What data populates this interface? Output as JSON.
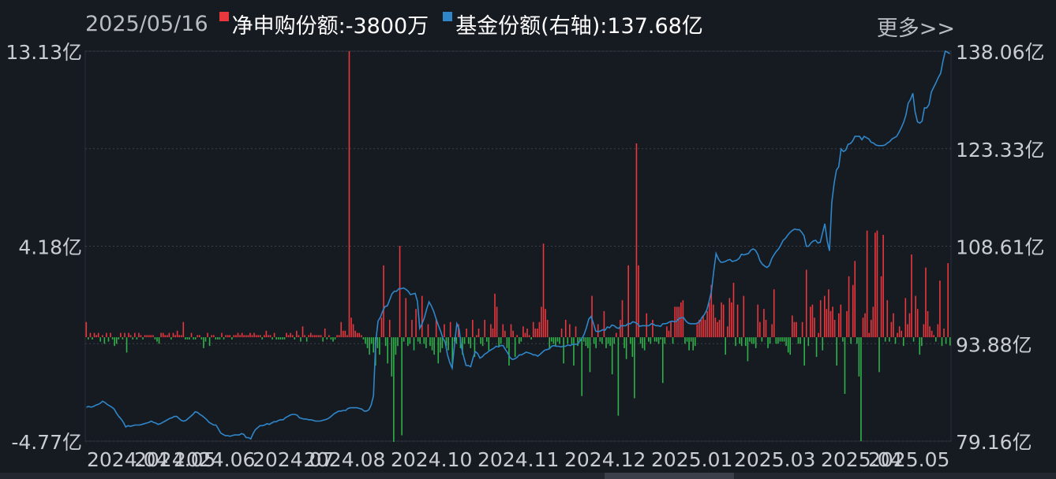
{
  "header": {
    "date": "2025/05/16",
    "net_label": "净申购份额:-3800万",
    "share_label": "基金份额(右轴):137.68亿",
    "more_label": "更多>>"
  },
  "colors": {
    "background": "#161a21",
    "positive_bar": "#e8373d",
    "negative_bar": "#2fb24a",
    "share_line": "#2f86c8",
    "text": "#c9ccd2"
  },
  "chart_data": {
    "type": "bar+line",
    "series": [
      {
        "name": "净申购份额",
        "axis": "left",
        "unit": "亿",
        "type": "bar",
        "values": [
          0.7,
          -0.1,
          0.2,
          -0.1,
          0.2,
          0.1,
          0.2,
          -0.2,
          0.1,
          -0.3,
          0.2,
          -0.2,
          0.2,
          -0.1,
          -0.4,
          -0.3,
          -0.1,
          0.2,
          -0.1,
          0.2,
          -0.7,
          0.2,
          0.1,
          -0.1,
          0.2,
          -0.1,
          0.2,
          0.1,
          -0.1,
          0.1,
          0.1,
          0.1,
          0.1,
          0.1,
          -0.1,
          -0.2,
          -0.3,
          0.2,
          0.2,
          0.1,
          0.1,
          0.2,
          -0.1,
          0.2,
          0.1,
          0.3,
          0.1,
          0.1,
          0.7,
          -0.1,
          -0.1,
          -0.1,
          0.2,
          -0.1,
          -0.1,
          0.1,
          0.1,
          -0.1,
          -0.5,
          -0.2,
          0.2,
          -0.4,
          0.1,
          0.1,
          -0.1,
          -0.1,
          -0.1,
          0.2,
          -0.1,
          0.1,
          0.1,
          0.1,
          -0.1,
          0.1,
          0.1,
          0.2,
          0.1,
          0.2,
          0.1,
          0.1,
          0.1,
          0.2,
          0.1,
          0.2,
          0.1,
          0.1,
          0.1,
          -0.1,
          0.1,
          0.3,
          0.1,
          0.1,
          -0.1,
          0.2,
          -0.1,
          -0.1,
          -0.1,
          -0.1,
          -0.1,
          0.2,
          0.1,
          0.2,
          0.1,
          -0.1,
          0.3,
          0.1,
          -0.2,
          0.5,
          0.1,
          -0.2,
          0.1,
          0.2,
          0.1,
          0.1,
          0.1,
          0.1,
          0.1,
          -0.2,
          0.4,
          -0.1,
          0.1,
          -0.1,
          -0.2,
          -0.1,
          0.1,
          0.1,
          0.7,
          0.3,
          0.3,
          0.1,
          13.13,
          0.9,
          0.6,
          0.3,
          0.2,
          0.2,
          0.1,
          -0.1,
          -0.3,
          -0.5,
          -0.8,
          -0.3,
          -0.7,
          -1.3,
          -0.5,
          -0.8,
          0.9,
          3.3,
          -0.4,
          -1.2,
          0.8,
          -1.8,
          -4.8,
          -0.8,
          -0.4,
          4.2,
          -4.5,
          -0.2,
          1.8,
          -0.4,
          -0.3,
          0.8,
          -0.6,
          1.3,
          -0.2,
          -0.3,
          1.9,
          -0.3,
          -0.5,
          0.6,
          -0.4,
          -0.6,
          -0.8,
          0.8,
          -1.2,
          -0.7,
          -0.5,
          0.6,
          -0.4,
          -0.6,
          0.7,
          -1.4,
          -0.2,
          -0.3,
          0.6,
          -0.5,
          -0.8,
          -0.3,
          0.4,
          -0.3,
          -0.5,
          0.8,
          -0.9,
          0.1,
          0.4,
          -0.3,
          -0.4,
          0.8,
          -0.2,
          -0.6,
          0.6,
          0.4,
          2.0,
          1.4,
          -0.4,
          -0.3,
          0.6,
          0.3,
          -0.5,
          -1.3,
          0.6,
          0.3,
          -0.9,
          0.1,
          -0.3,
          -0.2,
          0.5,
          0.2,
          0.4,
          0.1,
          -0.1,
          0.7,
          0.4,
          0.4,
          0.7,
          1.4,
          4.3,
          1.3,
          0.8,
          -0.5,
          -0.2,
          -0.3,
          -0.4,
          -0.2,
          -0.3,
          0.4,
          -1.2,
          0.8,
          -0.3,
          0.6,
          -0.3,
          -1.3,
          0.5,
          -0.4,
          -0.2,
          -2.7,
          -0.2,
          -0.4,
          -0.5,
          -1.6,
          1.9,
          -0.3,
          -0.5,
          0.6,
          -0.2,
          -0.3,
          1.2,
          -0.5,
          -0.3,
          -0.4,
          -1.7,
          -0.3,
          0.2,
          -3.6,
          0.8,
          1.7,
          -0.5,
          -1.0,
          3.3,
          -0.3,
          -0.9,
          -2.8,
          8.9,
          3.3,
          -0.3,
          -0.5,
          -0.6,
          1.1,
          -0.2,
          -0.3,
          0.8,
          -0.2,
          -0.2,
          -0.3,
          -0.1,
          -2.1,
          -0.3,
          0.5,
          0.3,
          0.7,
          -0.3,
          1.4,
          1.4,
          1.4,
          1.6,
          1.7,
          -0.3,
          -0.2,
          -0.6,
          -0.2,
          -0.6,
          -0.4,
          0.6,
          0.8,
          0.8,
          1.0,
          0.8,
          1.2,
          1.6,
          2.4,
          1.5,
          0.9,
          0.7,
          0.8,
          1.6,
          1.5,
          -0.8,
          0.5,
          1.8,
          1.6,
          2.5,
          -0.4,
          1.5,
          -0.3,
          -0.4,
          1.9,
          -0.4,
          -1.1,
          -0.2,
          -0.3,
          -0.3,
          -0.5,
          1.5,
          0.7,
          -0.2,
          1.3,
          0.8,
          -0.5,
          -0.3,
          0.6,
          2.2,
          -0.3,
          -0.3,
          -0.2,
          -0.2,
          -0.2,
          -0.4,
          -0.7,
          -0.8,
          1.0,
          0.7,
          0.7,
          -0.3,
          -0.3,
          0.7,
          -1.3,
          3.1,
          -0.4,
          1.4,
          1.5,
          0.9,
          -0.9,
          0.2,
          1.7,
          -0.6,
          1.9,
          1.3,
          2.2,
          1.2,
          1.4,
          0.8,
          -1.3,
          1.1,
          1.5,
          -0.2,
          -2.6,
          1.2,
          2.8,
          -0.3,
          2.4,
          3.5,
          -0.3,
          -1.8,
          -4.77,
          0.9,
          1.1,
          4.9,
          0.2,
          0.8,
          1.4,
          4.8,
          4.9,
          -1.6,
          2.8,
          4.7,
          -0.2,
          1.7,
          -0.2,
          0.7,
          1.1,
          -0.3,
          0.2,
          0.5,
          0.3,
          -0.4,
          1.8,
          0.6,
          1.1,
          3.8,
          -0.2,
          1.9,
          1.3,
          -0.8,
          -0.4,
          0.6,
          3.2,
          1.2,
          0.5,
          0.3,
          0.1,
          -0.2,
          0.6,
          2.6,
          -0.4,
          0.4,
          -0.3,
          3.4,
          -0.38
        ]
      },
      {
        "name": "基金份额",
        "axis": "right",
        "unit": "亿",
        "type": "line",
        "values": [
          84.3,
          84.4,
          84.3,
          84.4,
          84.6,
          84.7,
          84.9,
          85.2,
          85.0,
          84.7,
          84.5,
          84.3,
          84.0,
          83.4,
          82.9,
          82.5,
          82.0,
          81.3,
          81.5,
          81.4,
          81.5,
          81.6,
          81.6,
          81.6,
          81.7,
          81.8,
          81.9,
          82.0,
          82.2,
          82.0,
          81.9,
          81.7,
          81.8,
          82.0,
          82.2,
          82.4,
          82.6,
          82.7,
          82.9,
          82.9,
          82.6,
          82.3,
          82.2,
          82.3,
          82.6,
          82.9,
          83.2,
          83.6,
          83.5,
          83.2,
          83.0,
          82.7,
          82.4,
          82.0,
          81.8,
          81.6,
          81.6,
          81.0,
          80.4,
          80.2,
          80.0,
          80.0,
          79.9,
          80.0,
          80.1,
          80.1,
          80.1,
          80.3,
          80.2,
          79.7,
          79.7,
          79.5,
          80.3,
          80.9,
          81.2,
          81.5,
          81.5,
          81.6,
          81.8,
          81.7,
          81.9,
          82.1,
          82.1,
          82.3,
          82.4,
          82.4,
          82.7,
          82.9,
          83.1,
          83.2,
          83.2,
          83.1,
          82.7,
          82.6,
          82.5,
          82.5,
          82.4,
          82.4,
          82.3,
          82.2,
          82.2,
          82.2,
          82.3,
          82.4,
          82.5,
          82.7,
          83.0,
          83.3,
          83.5,
          83.7,
          83.7,
          83.8,
          83.8,
          84.1,
          84.2,
          84.2,
          84.2,
          84.2,
          84.1,
          84.0,
          83.7,
          83.7,
          83.9,
          84.6,
          86.0,
          94.2,
          97.3,
          97.9,
          98.8,
          99.5,
          99.6,
          100.5,
          101.4,
          101.8,
          101.8,
          102.2,
          102.2,
          102.3,
          102.1,
          101.8,
          101.3,
          101.4,
          101.5,
          100.3,
          96.2,
          96.9,
          97.8,
          99.1,
          100.2,
          99.6,
          98.8,
          97.7,
          96.7,
          95.8,
          94.7,
          94.1,
          92.2,
          91.0,
          90.2,
          93.6,
          96.9,
          96.1,
          93.4,
          91.9,
          90.6,
          90.6,
          90.4,
          91.7,
          92.7,
          92.4,
          91.7,
          91.9,
          92.3,
          92.5,
          92.8,
          93.0,
          93.2,
          93.5,
          93.4,
          93.6,
          93.6,
          93.0,
          92.5,
          91.8,
          91.5,
          91.6,
          91.8,
          92.2,
          92.2,
          92.4,
          92.6,
          92.5,
          92.4,
          92.2,
          92.2,
          92.0,
          92.3,
          92.6,
          92.9,
          93.0,
          93.1,
          93.5,
          93.6,
          93.5,
          93.5,
          93.4,
          93.5,
          93.5,
          93.7,
          93.6,
          93.8,
          93.8,
          93.8,
          94.2,
          94.6,
          95.3,
          96.3,
          97.6,
          98.0,
          97.0,
          95.8,
          95.7,
          95.8,
          96.0,
          95.9,
          96.4,
          96.3,
          96.7,
          96.6,
          96.3,
          96.2,
          96.6,
          96.6,
          96.6,
          96.9,
          96.9,
          97.2,
          97.1,
          96.9,
          96.5,
          96.6,
          96.6,
          96.6,
          96.6,
          96.9,
          96.8,
          96.6,
          96.6,
          96.5,
          96.9,
          96.9,
          97.0,
          97.2,
          97.3,
          97.2,
          97.3,
          97.7,
          97.8,
          97.8,
          97.3,
          97.0,
          96.9,
          96.9,
          96.9,
          97.0,
          97.3,
          97.9,
          98.3,
          99.0,
          100.3,
          101.8,
          104.9,
          107.5,
          106.7,
          106.2,
          106.2,
          106.3,
          106.5,
          106.6,
          106.3,
          106.4,
          106.5,
          106.8,
          107.4,
          107.3,
          107.4,
          107.5,
          108.0,
          108.2,
          108.0,
          107.4,
          106.4,
          105.9,
          105.6,
          105.4,
          105.7,
          106.7,
          107.3,
          107.8,
          108.2,
          108.8,
          109.5,
          109.8,
          110.3,
          110.7,
          111.0,
          111.2,
          111.1,
          111.1,
          110.7,
          110.2,
          108.6,
          108.6,
          109.1,
          109.4,
          109.5,
          109.1,
          109.2,
          110.6,
          112.0,
          109.4,
          107.9,
          115.2,
          118.1,
          120.1,
          120.6,
          123.3,
          122.9,
          123.1,
          124.0,
          124.1,
          124.5,
          125.2,
          125.2,
          125.2,
          124.7,
          125.2,
          125.0,
          124.8,
          124.3,
          124.2,
          123.9,
          123.8,
          123.8,
          123.8,
          123.9,
          124.2,
          124.4,
          124.8,
          125.0,
          125.2,
          125.8,
          126.5,
          127.3,
          128.4,
          130.2,
          130.8,
          131.7,
          128.9,
          127.4,
          127.2,
          127.5,
          129.5,
          129.5,
          130.0,
          131.9,
          132.6,
          133.3,
          134.1,
          134.7,
          136.5,
          138.06,
          137.9,
          137.68
        ]
      }
    ],
    "x_ticks": [
      "2024.04",
      "2024.05",
      "2024.06",
      "2024.07",
      "2024.08",
      "2024.10",
      "2024.11",
      "2024.12",
      "2025.01",
      "2025.03",
      "2025.04",
      "2025.05"
    ],
    "left_axis_ticks": [
      "13.13亿",
      "4.18亿",
      "-4.77亿"
    ],
    "left_ylim": [
      -4.77,
      13.13
    ],
    "right_axis_ticks": [
      "138.06亿",
      "123.33亿",
      "108.61亿",
      "93.88亿",
      "79.16亿"
    ],
    "right_ylim": [
      79.16,
      138.06
    ],
    "grid": true
  }
}
